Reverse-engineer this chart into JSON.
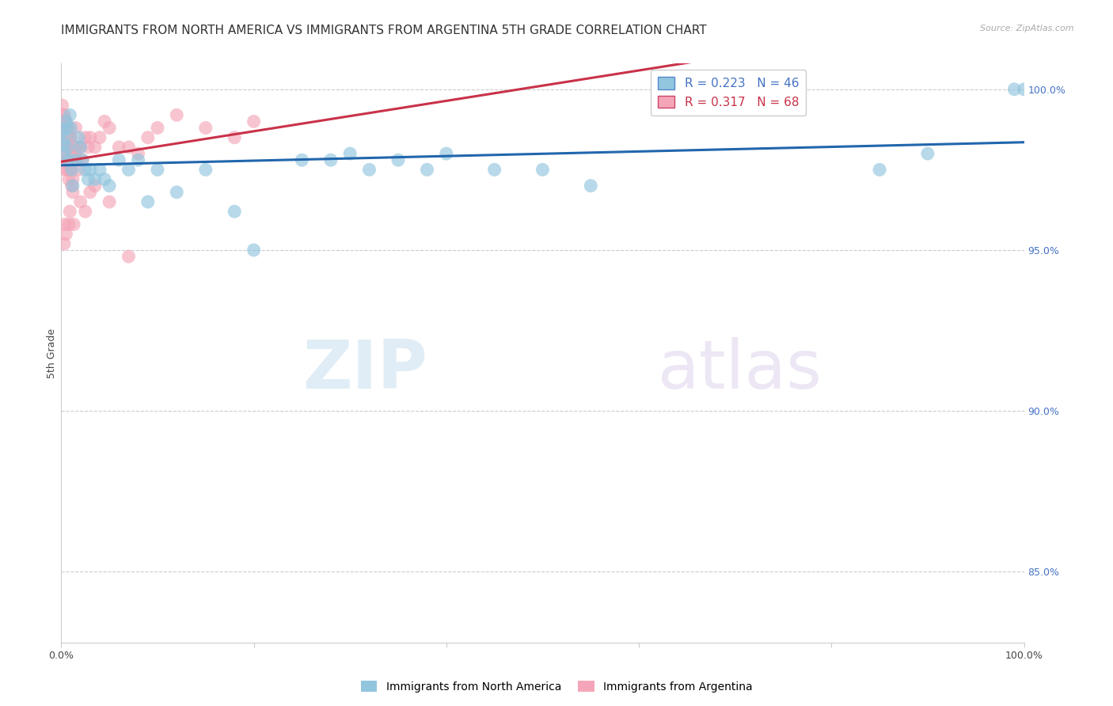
{
  "title": "IMMIGRANTS FROM NORTH AMERICA VS IMMIGRANTS FROM ARGENTINA 5TH GRADE CORRELATION CHART",
  "source": "Source: ZipAtlas.com",
  "ylabel": "5th Grade",
  "ylabel_right_labels": [
    "100.0%",
    "95.0%",
    "90.0%",
    "85.0%"
  ],
  "ylabel_right_positions": [
    1.0,
    0.95,
    0.9,
    0.85
  ],
  "watermark_zip": "ZIP",
  "watermark_atlas": "atlas",
  "legend_blue_label": "Immigrants from North America",
  "legend_pink_label": "Immigrants from Argentina",
  "R_blue": 0.223,
  "N_blue": 46,
  "R_pink": 0.317,
  "N_pink": 68,
  "color_blue": "#92c5de",
  "color_pink": "#f4a6b8",
  "color_line_blue": "#2166ac",
  "color_line_pink": "#c9324a",
  "scatter_blue_x": [
    0.001,
    0.002,
    0.003,
    0.004,
    0.005,
    0.006,
    0.007,
    0.008,
    0.009,
    0.01,
    0.011,
    0.012,
    0.015,
    0.018,
    0.02,
    0.022,
    0.025,
    0.028,
    0.03,
    0.035,
    0.04,
    0.045,
    0.05,
    0.06,
    0.07,
    0.08,
    0.09,
    0.1,
    0.12,
    0.15,
    0.18,
    0.2,
    0.25,
    0.28,
    0.3,
    0.32,
    0.35,
    0.38,
    0.4,
    0.45,
    0.5,
    0.55,
    0.85,
    0.9,
    0.99,
    1.0
  ],
  "scatter_blue_y": [
    0.987,
    0.983,
    0.98,
    0.985,
    0.99,
    0.988,
    0.982,
    0.978,
    0.992,
    0.988,
    0.975,
    0.97,
    0.978,
    0.985,
    0.982,
    0.978,
    0.975,
    0.972,
    0.975,
    0.972,
    0.975,
    0.972,
    0.97,
    0.978,
    0.975,
    0.978,
    0.965,
    0.975,
    0.968,
    0.975,
    0.962,
    0.95,
    0.978,
    0.978,
    0.98,
    0.975,
    0.978,
    0.975,
    0.98,
    0.975,
    0.975,
    0.97,
    0.975,
    0.98,
    1.0,
    1.0
  ],
  "scatter_pink_x": [
    0.001,
    0.001,
    0.001,
    0.002,
    0.002,
    0.002,
    0.003,
    0.003,
    0.003,
    0.004,
    0.004,
    0.004,
    0.005,
    0.005,
    0.005,
    0.006,
    0.006,
    0.007,
    0.007,
    0.008,
    0.008,
    0.008,
    0.009,
    0.009,
    0.01,
    0.01,
    0.011,
    0.011,
    0.012,
    0.012,
    0.013,
    0.014,
    0.015,
    0.015,
    0.016,
    0.017,
    0.018,
    0.02,
    0.022,
    0.025,
    0.028,
    0.03,
    0.035,
    0.04,
    0.045,
    0.05,
    0.06,
    0.07,
    0.08,
    0.09,
    0.1,
    0.12,
    0.15,
    0.18,
    0.2,
    0.025,
    0.03,
    0.012,
    0.008,
    0.005,
    0.003,
    0.004,
    0.009,
    0.013,
    0.02,
    0.035,
    0.05,
    0.07
  ],
  "scatter_pink_y": [
    0.995,
    0.99,
    0.985,
    0.992,
    0.988,
    0.982,
    0.992,
    0.985,
    0.978,
    0.99,
    0.982,
    0.975,
    0.99,
    0.985,
    0.978,
    0.988,
    0.975,
    0.985,
    0.978,
    0.988,
    0.982,
    0.972,
    0.985,
    0.975,
    0.985,
    0.975,
    0.982,
    0.97,
    0.98,
    0.968,
    0.982,
    0.98,
    0.988,
    0.978,
    0.982,
    0.978,
    0.975,
    0.982,
    0.978,
    0.985,
    0.982,
    0.985,
    0.982,
    0.985,
    0.99,
    0.988,
    0.982,
    0.982,
    0.98,
    0.985,
    0.988,
    0.992,
    0.988,
    0.985,
    0.99,
    0.962,
    0.968,
    0.972,
    0.958,
    0.955,
    0.952,
    0.958,
    0.962,
    0.958,
    0.965,
    0.97,
    0.965,
    0.948
  ],
  "xlim": [
    0.0,
    1.0
  ],
  "ylim": [
    0.828,
    1.008
  ],
  "ytick_positions": [
    0.85,
    0.875,
    0.9,
    0.925,
    0.95,
    0.975,
    1.0
  ],
  "grid_color": "#cccccc",
  "background_color": "#ffffff",
  "title_fontsize": 11,
  "axis_label_fontsize": 9,
  "tick_fontsize": 9
}
